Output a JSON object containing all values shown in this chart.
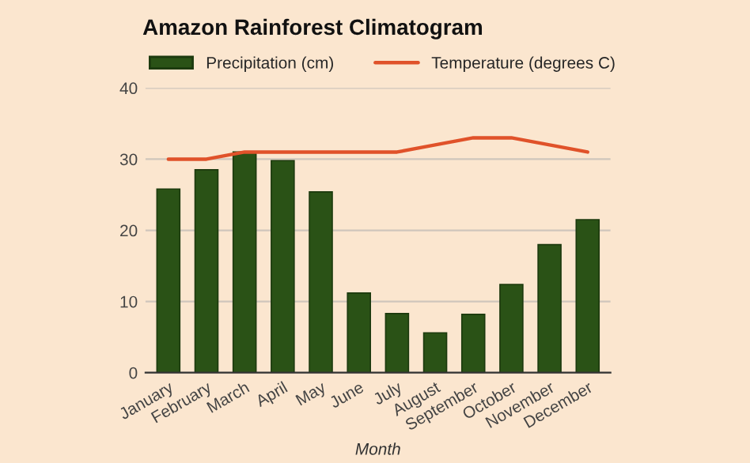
{
  "chart_data": {
    "type": "bar",
    "title": "Amazon Rainforest Climatogram",
    "xlabel": "Month",
    "categories": [
      "January",
      "February",
      "March",
      "April",
      "May",
      "June",
      "July",
      "August",
      "September",
      "October",
      "November",
      "December"
    ],
    "series": [
      {
        "name": "Precipitation (cm)",
        "color": "#2a5216",
        "values": [
          25.8,
          28.5,
          31,
          29.8,
          25.4,
          11.2,
          8.3,
          5.6,
          8.2,
          12.4,
          18,
          21.5
        ]
      },
      {
        "name": "Temperature (degrees C)",
        "type": "line",
        "color": "#e0522a",
        "values": [
          30,
          30,
          31,
          31,
          31,
          31,
          31,
          32,
          33,
          33,
          32,
          31
        ]
      }
    ],
    "ylim": [
      0,
      40
    ],
    "yticks": [
      0,
      10,
      20,
      30,
      40
    ],
    "grid": "y",
    "legend": "top left"
  }
}
